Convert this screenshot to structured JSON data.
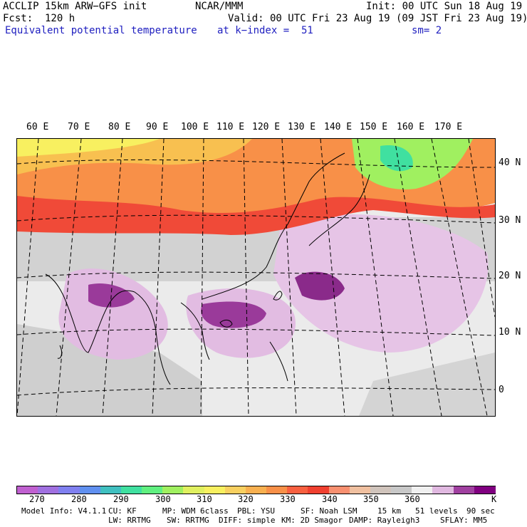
{
  "header": {
    "model": "ACCLIP 15km ARW−GFS init",
    "org": "NCAR/MMM",
    "init": "Init: 00 UTC Sun 18 Aug 19",
    "fcst": "Fcst:  120 h",
    "valid": "Valid: 00 UTC Fri 23 Aug 19 (09 JST Fri 23 Aug 19)",
    "field": "Equivalent potential temperature",
    "level": "at k−index =  51",
    "smooth": "sm= 2"
  },
  "map": {
    "lon_labels": [
      "60 E",
      "70 E",
      "80 E",
      "90 E",
      "100 E",
      "110 E",
      "120 E",
      "130 E",
      "140 E",
      "150 E",
      "160 E",
      "170 E"
    ],
    "lat_labels": [
      "40 N",
      "30 N",
      "20 N",
      "10 N",
      "0"
    ]
  },
  "colorbar": {
    "unit": "K",
    "labels": [
      "270",
      "280",
      "290",
      "300",
      "310",
      "320",
      "330",
      "340",
      "350",
      "360"
    ],
    "colors": [
      "#c060d0",
      "#a070e0",
      "#8080f0",
      "#6090f0",
      "#40c0c0",
      "#40e0a0",
      "#60f080",
      "#a0f060",
      "#e0f060",
      "#f8f060",
      "#f8d060",
      "#f8b050",
      "#f89048",
      "#f86040",
      "#f04030",
      "#f89070",
      "#f0c0a0",
      "#d0c4bc",
      "#c8c8c8",
      "#f0f0f0",
      "#e0b8e0",
      "#a040a0",
      "#800080"
    ]
  },
  "footer": {
    "line1": [
      "Model Info: V4.1.1",
      "CU: KF",
      "MP: WDM 6class",
      "PBL: YSU",
      "SF: Noah LSM",
      "15 km",
      "51 levels",
      "90 sec"
    ],
    "line2": [
      "LW: RRTMG",
      "SW: RRTMG",
      "DIFF: simple",
      "KM: 2D Smagor",
      "DAMP: Rayleigh3",
      "SFLAY: MM5"
    ]
  }
}
